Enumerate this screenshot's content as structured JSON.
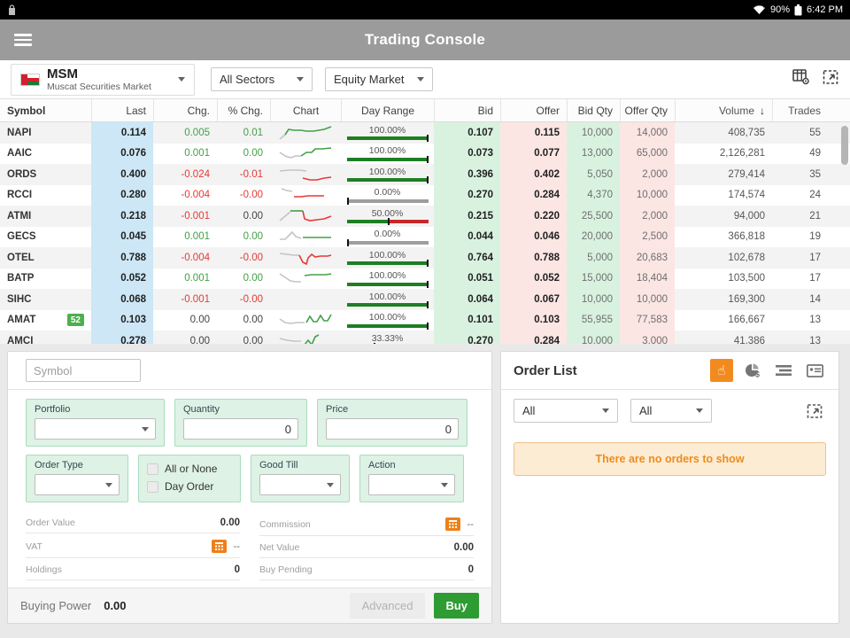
{
  "colors": {
    "appbar_bg": "#9b9b9b",
    "up_green": "#43a047",
    "down_red": "#e53935",
    "bar_green": "#1e7e24",
    "bar_red": "#c62828",
    "bar_gray": "#9e9e9e",
    "last_col_bg": "#cde7f6",
    "bid_col_bg": "#d9f2e0",
    "offer_col_bg": "#fbe6e4",
    "form_field_bg": "#def2e6",
    "orange_accent": "#ef7f1a",
    "buy_green": "#2e9b33",
    "empty_box_bg": "#fcecd4",
    "empty_box_text": "#ef8c1d",
    "badge_green": "#4caf50"
  },
  "status_bar": {
    "battery_pct": "90%",
    "time": "6:42 PM"
  },
  "app_header": {
    "title": "Trading Console"
  },
  "market_bar": {
    "code": "MSM",
    "name": "Muscat Securities Market",
    "sector_dropdown": "All Sectors",
    "market_dropdown": "Equity Market"
  },
  "table": {
    "columns": [
      {
        "key": "symbol",
        "label": "Symbol"
      },
      {
        "key": "last",
        "label": "Last"
      },
      {
        "key": "chg",
        "label": "Chg."
      },
      {
        "key": "pchg",
        "label": "% Chg."
      },
      {
        "key": "chart",
        "label": "Chart"
      },
      {
        "key": "range",
        "label": "Day Range"
      },
      {
        "key": "bid",
        "label": "Bid"
      },
      {
        "key": "offer",
        "label": "Offer"
      },
      {
        "key": "bidq",
        "label": "Bid Qty"
      },
      {
        "key": "offerq",
        "label": "Offer Qty"
      },
      {
        "key": "volume",
        "label": "Volume",
        "sort": "desc"
      },
      {
        "key": "trades",
        "label": "Trades"
      }
    ],
    "rows": [
      {
        "symbol": "NAPI",
        "last": "0.114",
        "chg": "0.005",
        "chg_dir": "up",
        "pchg": "0.01",
        "pchg_dir": "up",
        "range_label": "100.00%",
        "range_pct": 100,
        "bid": "0.107",
        "offer": "0.115",
        "bidq": "10,000",
        "offerq": "14,000",
        "volume": "408,735",
        "trades": "55"
      },
      {
        "symbol": "AAIC",
        "last": "0.076",
        "chg": "0.001",
        "chg_dir": "up",
        "pchg": "0.00",
        "pchg_dir": "up",
        "range_label": "100.00%",
        "range_pct": 100,
        "bid": "0.073",
        "offer": "0.077",
        "bidq": "13,000",
        "offerq": "65,000",
        "volume": "2,126,281",
        "trades": "49"
      },
      {
        "symbol": "ORDS",
        "last": "0.400",
        "chg": "-0.024",
        "chg_dir": "down",
        "pchg": "-0.01",
        "pchg_dir": "down",
        "range_label": "100.00%",
        "range_pct": 100,
        "bid": "0.396",
        "offer": "0.402",
        "bidq": "5,050",
        "offerq": "2,000",
        "volume": "279,414",
        "trades": "35"
      },
      {
        "symbol": "RCCI",
        "last": "0.280",
        "chg": "-0.004",
        "chg_dir": "down",
        "pchg": "-0.00",
        "pchg_dir": "down",
        "range_label": "0.00%",
        "range_pct": 0,
        "bid": "0.270",
        "offer": "0.284",
        "bidq": "4,370",
        "offerq": "10,000",
        "volume": "174,574",
        "trades": "24"
      },
      {
        "symbol": "ATMI",
        "last": "0.218",
        "chg": "-0.001",
        "chg_dir": "down",
        "pchg": "0.00",
        "pchg_dir": "flat",
        "range_label": "50.00%",
        "range_pct": 50,
        "bid": "0.215",
        "offer": "0.220",
        "bidq": "25,500",
        "offerq": "2,000",
        "volume": "94,000",
        "trades": "21"
      },
      {
        "symbol": "GECS",
        "last": "0.045",
        "chg": "0.001",
        "chg_dir": "up",
        "pchg": "0.00",
        "pchg_dir": "up",
        "range_label": "0.00%",
        "range_pct": 0,
        "bid": "0.044",
        "offer": "0.046",
        "bidq": "20,000",
        "offerq": "2,500",
        "volume": "366,818",
        "trades": "19"
      },
      {
        "symbol": "OTEL",
        "last": "0.788",
        "chg": "-0.004",
        "chg_dir": "down",
        "pchg": "-0.00",
        "pchg_dir": "down",
        "range_label": "100.00%",
        "range_pct": 100,
        "bid": "0.764",
        "offer": "0.788",
        "bidq": "5,000",
        "offerq": "20,683",
        "volume": "102,678",
        "trades": "17"
      },
      {
        "symbol": "BATP",
        "last": "0.052",
        "chg": "0.001",
        "chg_dir": "up",
        "pchg": "0.00",
        "pchg_dir": "up",
        "range_label": "100.00%",
        "range_pct": 100,
        "bid": "0.051",
        "offer": "0.052",
        "bidq": "15,000",
        "offerq": "18,404",
        "volume": "103,500",
        "trades": "17"
      },
      {
        "symbol": "SIHC",
        "last": "0.068",
        "chg": "-0.001",
        "chg_dir": "down",
        "pchg": "-0.00",
        "pchg_dir": "down",
        "range_label": "100.00%",
        "range_pct": 100,
        "bid": "0.064",
        "offer": "0.067",
        "bidq": "10,000",
        "offerq": "10,000",
        "volume": "169,300",
        "trades": "14"
      },
      {
        "symbol": "AMAT",
        "badge": "52",
        "last": "0.103",
        "chg": "0.00",
        "chg_dir": "flat",
        "pchg": "0.00",
        "pchg_dir": "flat",
        "range_label": "100.00%",
        "range_pct": 100,
        "bid": "0.101",
        "offer": "0.103",
        "bidq": "55,955",
        "offerq": "77,583",
        "volume": "166,667",
        "trades": "13"
      },
      {
        "symbol": "AMCI",
        "last": "0.278",
        "chg": "0.00",
        "chg_dir": "flat",
        "pchg": "0.00",
        "pchg_dir": "flat",
        "range_label": "33.33%",
        "range_pct": 33.33,
        "bid": "0.270",
        "offer": "0.284",
        "bidq": "10,000",
        "offerq": "3,000",
        "volume": "41,386",
        "trades": "13"
      }
    ],
    "sparks": {
      "NAPI": [
        {
          "c": "x",
          "p": "3,16 9,11"
        },
        {
          "c": "g",
          "p": "9,11 13,5 19,6 27,6 33,7 41,7 47,6 53,5 61,2"
        }
      ],
      "AAIC": [
        {
          "c": "x",
          "p": "3,8 9,12 15,14 21,12 27,12"
        },
        {
          "c": "g",
          "p": "27,12 33,8 39,8 43,4 51,4 61,3"
        }
      ],
      "ORDS": [
        {
          "c": "x",
          "p": "3,5 13,4 25,4 33,5"
        },
        {
          "c": "r",
          "p": "29,13 37,15 45,15 53,13 61,12"
        }
      ],
      "RCCI": [
        {
          "c": "x",
          "p": "5,2 11,4 17,5"
        },
        {
          "c": "r",
          "p": "19,11 27,11 35,10 43,10 53,10"
        }
      ],
      "ATMI": [
        {
          "c": "x",
          "p": "3,14 9,9 15,4"
        },
        {
          "c": "g",
          "p": "15,3 25,3 29,3"
        },
        {
          "c": "r",
          "p": "29,3 31,12 37,14 45,13 53,12 61,9"
        }
      ],
      "GECS": [
        {
          "c": "x",
          "p": "3,12 9,12 13,8 17,4 21,9 27,11"
        },
        {
          "c": "g",
          "p": "29,10 37,10 45,10 53,10 61,10"
        }
      ],
      "OTEL": [
        {
          "c": "x",
          "p": "3,4 11,5 19,6 25,6"
        },
        {
          "c": "r",
          "p": "25,6 29,14 33,16 35,9 39,5 43,8 49,7 57,7 61,6"
        }
      ],
      "BATP": [
        {
          "c": "x",
          "p": "3,4 9,8 15,12 21,13 27,13"
        },
        {
          "c": "g",
          "p": "31,6 39,5 47,5 55,5 61,4"
        }
      ],
      "SIHC": [],
      "AMAT": [
        {
          "c": "x",
          "p": "3,8 9,12 15,13 23,12 31,12"
        },
        {
          "c": "g",
          "p": "33,12 37,5 41,11 45,11 49,4 53,10 57,10 61,3"
        }
      ],
      "AMCI": [
        {
          "c": "x",
          "p": "3,6 11,8 19,9 27,9"
        },
        {
          "c": "g",
          "p": "31,13 35,8 39,13 43,4 47,2"
        }
      ]
    }
  },
  "order_form": {
    "symbol_placeholder": "Symbol",
    "portfolio_label": "Portfolio",
    "quantity_label": "Quantity",
    "quantity_value": "0",
    "price_label": "Price",
    "price_value": "0",
    "order_type_label": "Order Type",
    "all_or_none_label": "All or None",
    "day_order_label": "Day Order",
    "good_till_label": "Good Till",
    "action_label": "Action",
    "summary": {
      "order_value_label": "Order Value",
      "order_value": "0.00",
      "commission_label": "Commission",
      "commission_value": "--",
      "vat_label": "VAT",
      "vat_value": "--",
      "net_value_label": "Net Value",
      "net_value": "0.00",
      "holdings_label": "Holdings",
      "holdings_value": "0",
      "buy_pending_label": "Buy Pending",
      "buy_pending_value": "0"
    },
    "buying_power_label": "Buying Power",
    "buying_power_value": "0.00",
    "advanced_label": "Advanced",
    "buy_label": "Buy"
  },
  "order_list": {
    "title": "Order List",
    "filter1": "All",
    "filter2": "All",
    "empty_message": "There are no orders to show"
  }
}
